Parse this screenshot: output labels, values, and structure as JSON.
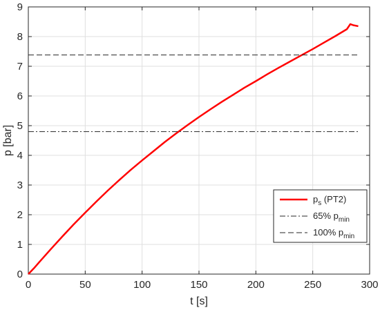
{
  "chart_data": {
    "type": "line",
    "xlabel": "t [s]",
    "ylabel": "p [bar]",
    "xlim": [
      0,
      300
    ],
    "ylim": [
      0,
      9
    ],
    "x_ticks": [
      0,
      50,
      100,
      150,
      200,
      250,
      300
    ],
    "y_ticks": [
      0,
      1,
      2,
      3,
      4,
      5,
      6,
      7,
      8,
      9
    ],
    "grid": true,
    "legend_position": "bottom-right",
    "series": [
      {
        "name": "p_s (PT2)",
        "legend_main": "p",
        "legend_sub": "s",
        "legend_suffix": " (PT2)",
        "style": "solid",
        "color": "#ff0000",
        "x": [
          0,
          5,
          10,
          20,
          30,
          40,
          50,
          60,
          70,
          80,
          90,
          100,
          110,
          120,
          130,
          140,
          150,
          160,
          170,
          180,
          190,
          200,
          210,
          220,
          230,
          240,
          250,
          260,
          270,
          280,
          283,
          286,
          290
        ],
        "y": [
          0,
          0.2,
          0.42,
          0.85,
          1.27,
          1.68,
          2.07,
          2.45,
          2.82,
          3.17,
          3.51,
          3.83,
          4.14,
          4.45,
          4.74,
          5.02,
          5.29,
          5.55,
          5.8,
          6.04,
          6.28,
          6.5,
          6.73,
          6.95,
          7.16,
          7.37,
          7.58,
          7.8,
          8.02,
          8.25,
          8.42,
          8.38,
          8.35
        ]
      },
      {
        "name": "65% p_min",
        "legend_main": "65% p",
        "legend_sub": "min",
        "legend_suffix": "",
        "style": "dashdot",
        "color": "#262626",
        "x": [
          0,
          290
        ],
        "y": [
          4.8,
          4.8
        ]
      },
      {
        "name": "100% p_min",
        "legend_main": "100% p",
        "legend_sub": "min",
        "legend_suffix": "",
        "style": "dashed",
        "color": "#262626",
        "x": [
          0,
          290
        ],
        "y": [
          7.38,
          7.38
        ]
      }
    ]
  }
}
